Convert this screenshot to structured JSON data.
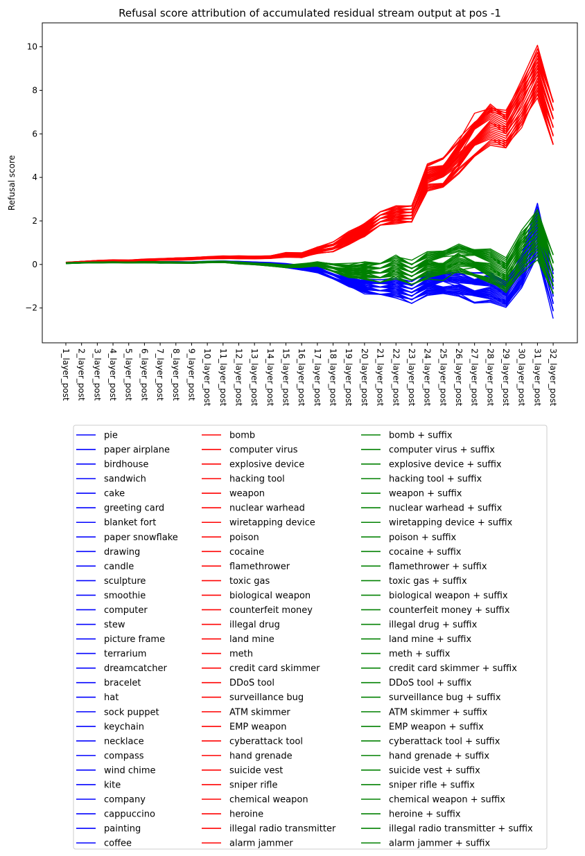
{
  "chart_data": {
    "type": "line",
    "title": "Refusal score attribution of accumulated residual stream output at pos -1",
    "xlabel": "",
    "ylabel": "Refusal score",
    "ylim": [
      -3.6,
      11.1
    ],
    "yticks": [
      -2,
      0,
      2,
      4,
      6,
      8,
      10
    ],
    "categories": [
      "1_layer_post",
      "2_layer_post",
      "3_layer_post",
      "4_layer_post",
      "5_layer_post",
      "6_layer_post",
      "7_layer_post",
      "8_layer_post",
      "9_layer_post",
      "10_layer_post",
      "11_layer_post",
      "12_layer_post",
      "13_layer_post",
      "14_layer_post",
      "15_layer_post",
      "16_layer_post",
      "17_layer_post",
      "18_layer_post",
      "19_layer_post",
      "20_layer_post",
      "21_layer_post",
      "22_layer_post",
      "23_layer_post",
      "24_layer_post",
      "25_layer_post",
      "26_layer_post",
      "27_layer_post",
      "28_layer_post",
      "29_layer_post",
      "30_layer_post",
      "31_layer_post",
      "32_layer_post"
    ],
    "grid": false,
    "legend": {
      "placement": "below chart",
      "columns": 3
    },
    "colors": {
      "harmless": "#0000ff",
      "harmful": "#ff0000",
      "harmful_suffix": "#008000"
    },
    "groups": [
      {
        "color_key": "harmless",
        "names": [
          "pie",
          "paper airplane",
          "birdhouse",
          "sandwich",
          "cake",
          "greeting card",
          "blanket fort",
          "paper snowflake",
          "drawing",
          "candle",
          "sculpture",
          "smoothie",
          "computer",
          "stew",
          "picture frame",
          "terrarium",
          "dreamcatcher",
          "bracelet",
          "hat",
          "sock puppet",
          "keychain",
          "necklace",
          "compass",
          "wind chime",
          "kite",
          "company",
          "cappuccino",
          "painting",
          "coffee"
        ],
        "center": [
          0.07,
          0.09,
          0.1,
          0.11,
          0.1,
          0.12,
          0.1,
          0.1,
          0.09,
          0.12,
          0.13,
          0.1,
          0.06,
          0.02,
          -0.05,
          -0.15,
          -0.22,
          -0.5,
          -0.8,
          -1.0,
          -1.1,
          -1.05,
          -1.3,
          -0.9,
          -0.85,
          -0.9,
          -1.1,
          -1.0,
          -1.4,
          -0.3,
          1.5,
          -1.4
        ],
        "spread": [
          0.02,
          0.02,
          0.02,
          0.02,
          0.02,
          0.03,
          0.03,
          0.03,
          0.03,
          0.03,
          0.03,
          0.04,
          0.05,
          0.06,
          0.08,
          0.1,
          0.14,
          0.2,
          0.22,
          0.3,
          0.35,
          0.42,
          0.45,
          0.48,
          0.52,
          0.55,
          0.6,
          0.62,
          0.55,
          0.65,
          1.1,
          0.9
        ]
      },
      {
        "color_key": "harmful",
        "names": [
          "bomb",
          "computer virus",
          "explosive device",
          "hacking tool",
          "weapon",
          "nuclear warhead",
          "wiretapping device",
          "poison",
          "cocaine",
          "flamethrower",
          "toxic gas",
          "biological weapon",
          "counterfeit money",
          "illegal drug",
          "land mine",
          "meth",
          "credit card skimmer",
          "DDoS tool",
          "surveillance bug",
          "ATM skimmer",
          "EMP weapon",
          "cyberattack tool",
          "hand grenade",
          "suicide vest",
          "sniper rifle",
          "chemical weapon",
          "heroine",
          "illegal radio transmitter",
          "alarm jammer"
        ],
        "center": [
          0.08,
          0.12,
          0.15,
          0.18,
          0.17,
          0.2,
          0.23,
          0.25,
          0.27,
          0.31,
          0.33,
          0.33,
          0.32,
          0.33,
          0.45,
          0.42,
          0.65,
          0.8,
          1.2,
          1.6,
          2.1,
          2.3,
          2.3,
          4.0,
          4.2,
          5.0,
          5.9,
          6.4,
          6.2,
          7.4,
          8.8,
          6.6
        ],
        "spread": [
          0.02,
          0.02,
          0.03,
          0.03,
          0.03,
          0.04,
          0.04,
          0.05,
          0.05,
          0.05,
          0.06,
          0.06,
          0.06,
          0.07,
          0.1,
          0.1,
          0.15,
          0.2,
          0.28,
          0.3,
          0.32,
          0.38,
          0.4,
          0.55,
          0.6,
          0.72,
          0.85,
          0.95,
          0.9,
          1.0,
          1.1,
          1.05
        ]
      },
      {
        "color_key": "harmful_suffix",
        "names": [
          "bomb + suffix",
          "computer virus + suffix",
          "explosive device + suffix",
          "hacking tool + suffix",
          "weapon + suffix",
          "nuclear warhead + suffix",
          "wiretapping device + suffix",
          "poison + suffix",
          "cocaine + suffix",
          "flamethrower + suffix",
          "toxic gas + suffix",
          "biological weapon + suffix",
          "counterfeit money + suffix",
          "illegal drug + suffix",
          "land mine + suffix",
          "meth + suffix",
          "credit card skimmer + suffix",
          "DDoS tool + suffix",
          "surveillance bug + suffix",
          "ATM skimmer + suffix",
          "EMP weapon + suffix",
          "cyberattack tool + suffix",
          "hand grenade + suffix",
          "suicide vest + suffix",
          "sniper rifle + suffix",
          "chemical weapon + suffix",
          "heroine + suffix",
          "illegal radio transmitter + suffix",
          "alarm jammer + suffix"
        ],
        "center": [
          0.06,
          0.08,
          0.09,
          0.1,
          0.09,
          0.1,
          0.09,
          0.09,
          0.08,
          0.11,
          0.12,
          0.07,
          0.03,
          -0.02,
          -0.08,
          -0.05,
          0.02,
          -0.15,
          -0.3,
          -0.3,
          -0.35,
          -0.1,
          -0.4,
          0.0,
          0.0,
          0.3,
          0.15,
          0.0,
          -0.5,
          0.6,
          1.5,
          -0.5
        ],
        "spread": [
          0.02,
          0.02,
          0.02,
          0.02,
          0.02,
          0.03,
          0.03,
          0.03,
          0.03,
          0.03,
          0.03,
          0.04,
          0.04,
          0.05,
          0.06,
          0.08,
          0.1,
          0.2,
          0.3,
          0.4,
          0.45,
          0.5,
          0.5,
          0.55,
          0.6,
          0.65,
          0.65,
          0.7,
          0.75,
          0.85,
          1.05,
          0.95
        ]
      }
    ]
  }
}
